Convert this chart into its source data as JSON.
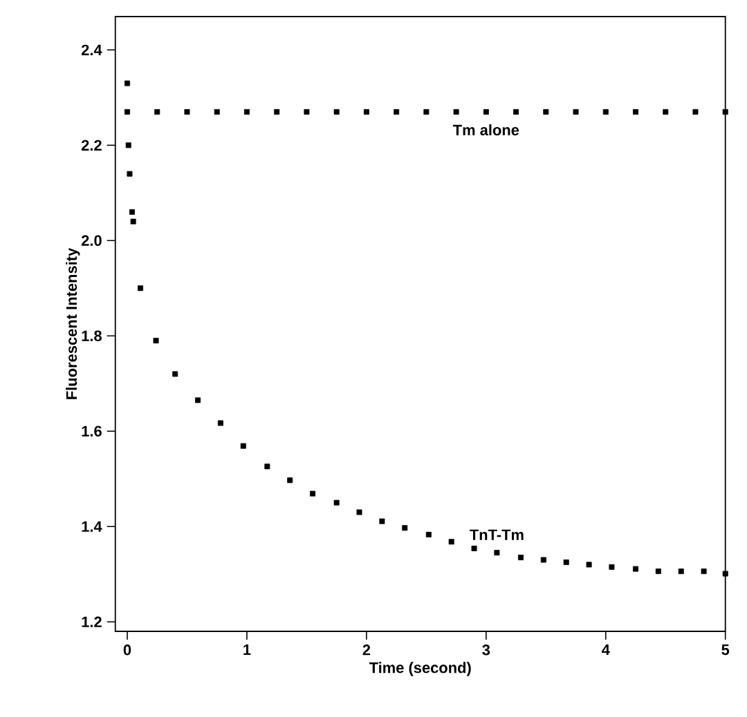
{
  "chart_data": {
    "type": "scatter",
    "xlabel": "Time (second)",
    "ylabel": "Fluorescent Intensity",
    "xlim": [
      -0.1,
      5.0
    ],
    "ylim": [
      1.18,
      2.47
    ],
    "xticks": [
      0,
      1,
      2,
      3,
      4,
      5
    ],
    "yticks": [
      1.2,
      1.4,
      1.6,
      1.8,
      {
        "value": 2.0,
        "label": "2.0"
      },
      2.2,
      2.4
    ],
    "marker": "square",
    "grid": false,
    "series": [
      {
        "name": "Tm alone",
        "color": "#000000",
        "x": [
          0,
          0.25,
          0.5,
          0.75,
          1,
          1.25,
          1.5,
          1.75,
          2,
          2.25,
          2.5,
          2.75,
          3,
          3.25,
          3.5,
          3.75,
          4,
          4.25,
          4.5,
          4.75,
          5
        ],
        "values": [
          2.27,
          2.27,
          2.27,
          2.27,
          2.27,
          2.27,
          2.27,
          2.27,
          2.27,
          2.27,
          2.27,
          2.27,
          2.27,
          2.27,
          2.27,
          2.27,
          2.27,
          2.27,
          2.27,
          2.27,
          2.27
        ]
      },
      {
        "name": "TnT-Tm",
        "color": "#000000",
        "x": [
          0,
          0.01,
          0.02,
          0.04,
          0.05,
          0.11,
          0.24,
          0.4,
          0.59,
          0.78,
          0.97,
          1.17,
          1.36,
          1.55,
          1.75,
          1.94,
          2.13,
          2.32,
          2.52,
          2.71,
          2.9,
          3.09,
          3.29,
          3.48,
          3.67,
          3.86,
          4.05,
          4.25,
          4.44,
          4.63,
          4.82,
          5.0
        ],
        "values": [
          2.33,
          2.2,
          2.14,
          2.06,
          2.04,
          1.9,
          1.79,
          1.72,
          1.665,
          1.617,
          1.569,
          1.526,
          1.497,
          1.469,
          1.45,
          1.43,
          1.411,
          1.397,
          1.383,
          1.368,
          1.354,
          1.345,
          1.335,
          1.33,
          1.325,
          1.32,
          1.315,
          1.311,
          1.306,
          1.306,
          1.306,
          1.301
        ]
      }
    ]
  }
}
